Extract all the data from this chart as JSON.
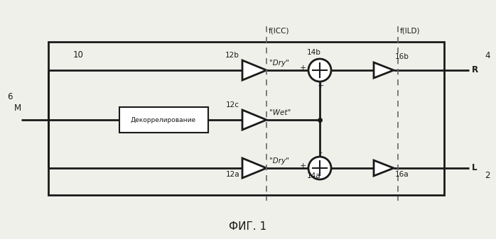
{
  "bg_color": "#f0f0eb",
  "line_color": "#1a1a1a",
  "title": "ФИГ. 1",
  "label_M": "M",
  "label_6": "6",
  "label_10": "10",
  "label_dec": "Декоррелирование",
  "label_12a": "12a",
  "label_12b": "12b",
  "label_12c": "12c",
  "label_14a": "14a",
  "label_14b": "14b",
  "label_16a": "16a",
  "label_16b": "16b",
  "label_fICC": "f(ICC)",
  "label_fILD": "f(ILD)",
  "label_dry_top": "\"Dry\"",
  "label_wet": "\"Wet\"",
  "label_dry_bot": "\"Dry\"",
  "label_R": "R",
  "label_L": "L",
  "label_2": "2",
  "label_4": "4"
}
